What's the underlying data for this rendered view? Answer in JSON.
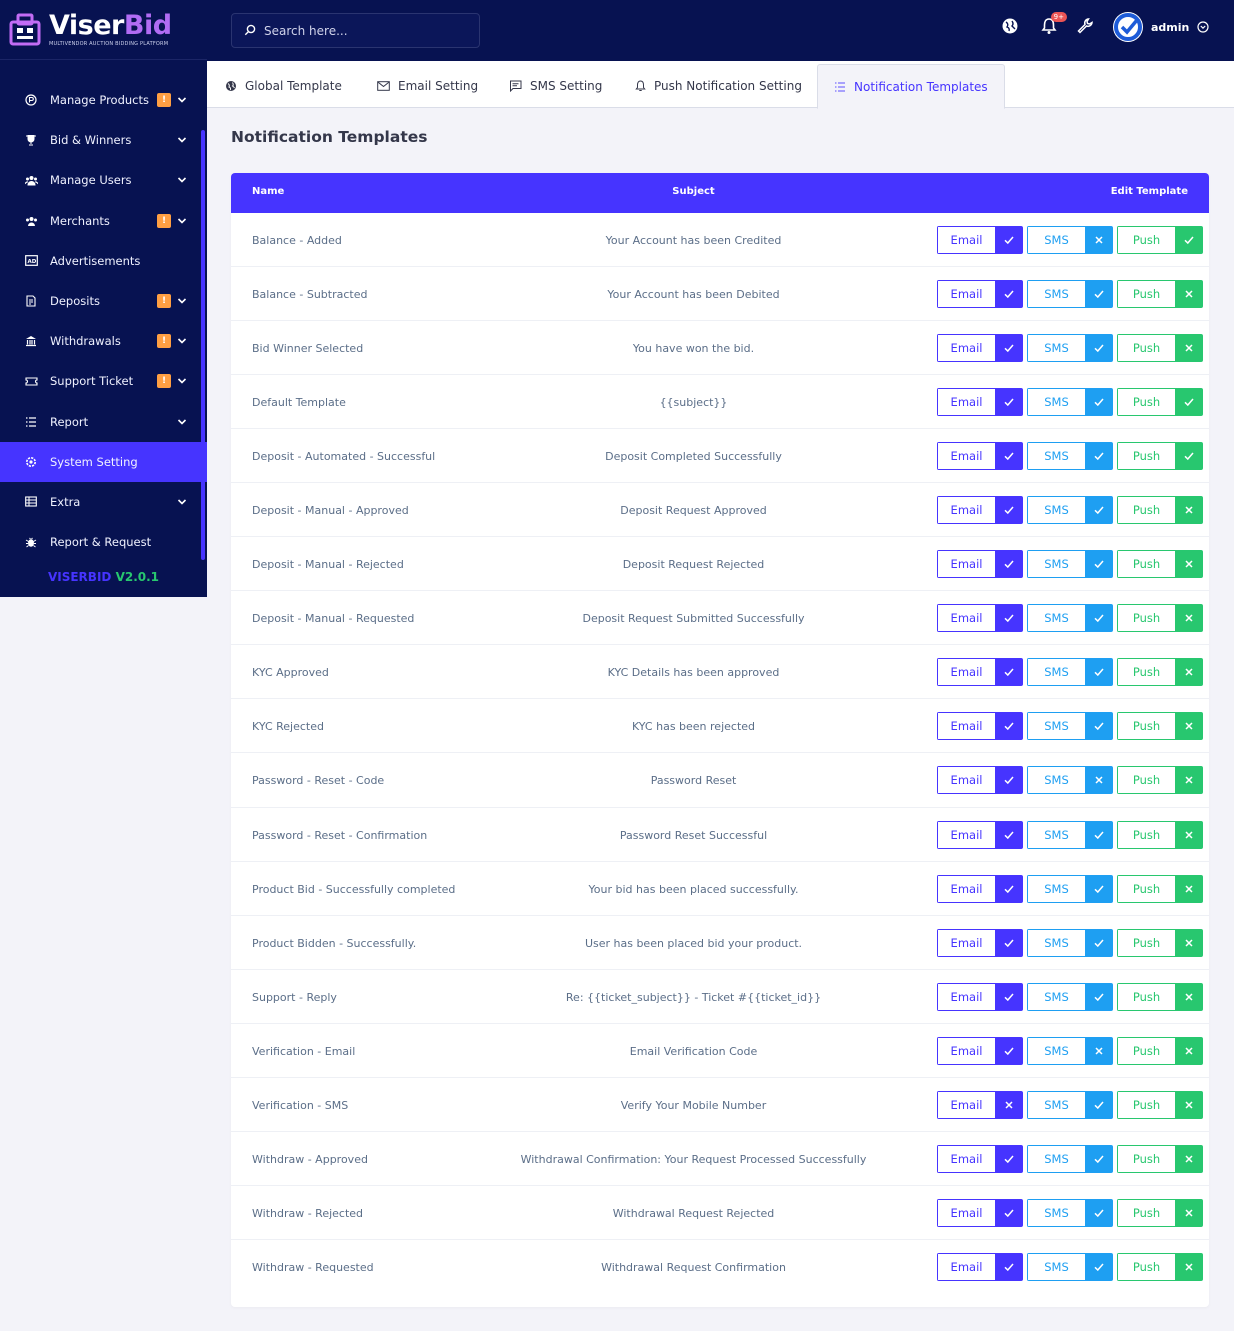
{
  "brand": {
    "name_part1": "Viser",
    "name_part2": "Bid",
    "tagline": "MULTIVENDOR AUCTION BIDDING PLATFORM"
  },
  "sidebar": {
    "items": [
      {
        "label": "Manage Products",
        "icon": "product-icon",
        "badge": "!",
        "has_submenu": true,
        "active": false
      },
      {
        "label": "Bid & Winners",
        "icon": "trophy-icon",
        "badge": "",
        "has_submenu": true,
        "active": false
      },
      {
        "label": "Manage Users",
        "icon": "users-icon",
        "badge": "",
        "has_submenu": true,
        "active": false
      },
      {
        "label": "Merchants",
        "icon": "merchants-icon",
        "badge": "!",
        "has_submenu": true,
        "active": false
      },
      {
        "label": "Advertisements",
        "icon": "ad-icon",
        "badge": "",
        "has_submenu": false,
        "active": false
      },
      {
        "label": "Deposits",
        "icon": "deposit-icon",
        "badge": "!",
        "has_submenu": true,
        "active": false
      },
      {
        "label": "Withdrawals",
        "icon": "bank-icon",
        "badge": "!",
        "has_submenu": true,
        "active": false
      },
      {
        "label": "Support Ticket",
        "icon": "ticket-icon",
        "badge": "!",
        "has_submenu": true,
        "active": false
      },
      {
        "label": "Report",
        "icon": "list-icon",
        "badge": "",
        "has_submenu": true,
        "active": false
      },
      {
        "label": "System Setting",
        "icon": "settings-icon",
        "badge": "",
        "has_submenu": false,
        "active": true
      },
      {
        "label": "Extra",
        "icon": "server-icon",
        "badge": "",
        "has_submenu": true,
        "active": false
      },
      {
        "label": "Report & Request",
        "icon": "bug-icon",
        "badge": "",
        "has_submenu": false,
        "active": false
      }
    ],
    "version_brand": "VISERBID",
    "version_number": "V2.0.1"
  },
  "topbar": {
    "search_placeholder": "Search here...",
    "notification_count": "9+",
    "admin_name": "admin"
  },
  "tabs": [
    {
      "label": "Global Template",
      "icon": "globe-icon",
      "active": false
    },
    {
      "label": "Email Setting",
      "icon": "envelope-icon",
      "active": false
    },
    {
      "label": "SMS Setting",
      "icon": "message-icon",
      "active": false
    },
    {
      "label": "Push Notification Setting",
      "icon": "bell-icon",
      "active": false
    },
    {
      "label": "Notification Templates",
      "icon": "list-icon",
      "active": true
    }
  ],
  "page_title": "Notification Templates",
  "table": {
    "headers": {
      "name": "Name",
      "subject": "Subject",
      "edit": "Edit Template"
    },
    "labels": {
      "email": "Email",
      "sms": "SMS",
      "push": "Push"
    },
    "rows": [
      {
        "name": "Balance - Added",
        "subject": "Your Account has been Credited",
        "email": true,
        "sms": false,
        "push": true
      },
      {
        "name": "Balance - Subtracted",
        "subject": "Your Account has been Debited",
        "email": true,
        "sms": true,
        "push": false
      },
      {
        "name": "Bid Winner Selected",
        "subject": "You have won the bid.",
        "email": true,
        "sms": true,
        "push": false
      },
      {
        "name": "Default Template",
        "subject": "{{subject}}",
        "email": true,
        "sms": true,
        "push": true
      },
      {
        "name": "Deposit - Automated - Successful",
        "subject": "Deposit Completed Successfully",
        "email": true,
        "sms": true,
        "push": true
      },
      {
        "name": "Deposit - Manual - Approved",
        "subject": "Deposit Request Approved",
        "email": true,
        "sms": true,
        "push": false
      },
      {
        "name": "Deposit - Manual - Rejected",
        "subject": "Deposit Request Rejected",
        "email": true,
        "sms": true,
        "push": false
      },
      {
        "name": "Deposit - Manual - Requested",
        "subject": "Deposit Request Submitted Successfully",
        "email": true,
        "sms": true,
        "push": false
      },
      {
        "name": "KYC Approved",
        "subject": "KYC Details has been approved",
        "email": true,
        "sms": true,
        "push": false
      },
      {
        "name": "KYC Rejected",
        "subject": "KYC has been rejected",
        "email": true,
        "sms": true,
        "push": false
      },
      {
        "name": "Password - Reset - Code",
        "subject": "Password Reset",
        "email": true,
        "sms": false,
        "push": false
      },
      {
        "name": "Password - Reset - Confirmation",
        "subject": "Password Reset Successful",
        "email": true,
        "sms": true,
        "push": false
      },
      {
        "name": "Product Bid - Successfully completed",
        "subject": "Your bid has been placed successfully.",
        "email": true,
        "sms": true,
        "push": false
      },
      {
        "name": "Product Bidden - Successfully.",
        "subject": "User has been placed bid your product.",
        "email": true,
        "sms": true,
        "push": false
      },
      {
        "name": "Support - Reply",
        "subject": "Re: {{ticket_subject}} - Ticket #{{ticket_id}}",
        "email": true,
        "sms": true,
        "push": false
      },
      {
        "name": "Verification - Email",
        "subject": "Email Verification Code",
        "email": true,
        "sms": false,
        "push": false
      },
      {
        "name": "Verification - SMS",
        "subject": "Verify Your Mobile Number",
        "email": false,
        "sms": true,
        "push": false
      },
      {
        "name": "Withdraw - Approved",
        "subject": "Withdrawal Confirmation: Your Request Processed Successfully",
        "email": true,
        "sms": true,
        "push": false
      },
      {
        "name": "Withdraw - Rejected",
        "subject": "Withdrawal Request Rejected",
        "email": true,
        "sms": true,
        "push": false
      },
      {
        "name": "Withdraw - Requested",
        "subject": "Withdrawal Request Confirmation",
        "email": true,
        "sms": true,
        "push": false
      }
    ]
  },
  "colors": {
    "primary": "#4634ff",
    "sidebar": "#071251",
    "info": "#1e9ff2",
    "success": "#28c76f",
    "warning": "#ff9f43"
  }
}
